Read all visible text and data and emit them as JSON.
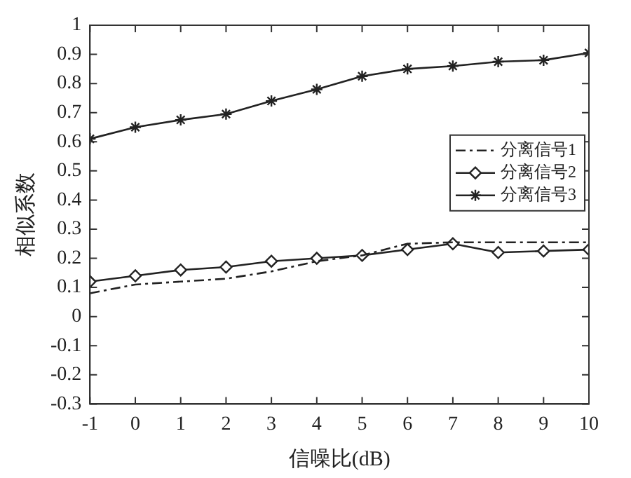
{
  "chart_data": {
    "type": "line",
    "xlabel": "信噪比(dB)",
    "ylabel": "相似系数",
    "x": [
      -1,
      0,
      1,
      2,
      3,
      4,
      5,
      6,
      7,
      8,
      9,
      10
    ],
    "xlim": [
      -1,
      10
    ],
    "xticks": [
      -1,
      0,
      1,
      2,
      3,
      4,
      5,
      6,
      7,
      8,
      9,
      10
    ],
    "ylim": [
      -0.3,
      1
    ],
    "yticks": [
      -0.3,
      -0.2,
      -0.1,
      0,
      0.1,
      0.2,
      0.3,
      0.4,
      0.5,
      0.6,
      0.7,
      0.8,
      0.9,
      1
    ],
    "grid": false,
    "legend": "right",
    "series": [
      {
        "name": "分离信号1",
        "color": "#222222",
        "marker": "none",
        "line_style": "dashed",
        "values": [
          0.08,
          0.11,
          0.12,
          0.13,
          0.155,
          0.19,
          0.21,
          0.25,
          0.255,
          0.255,
          0.255,
          0.255
        ]
      },
      {
        "name": "分离信号2",
        "color": "#222222",
        "marker": "diamond",
        "line_style": "solid",
        "values": [
          0.12,
          0.14,
          0.16,
          0.17,
          0.19,
          0.2,
          0.21,
          0.23,
          0.25,
          0.22,
          0.225,
          0.23
        ]
      },
      {
        "name": "分离信号3",
        "color": "#222222",
        "marker": "cross",
        "line_style": "solid",
        "values": [
          0.61,
          0.65,
          0.675,
          0.695,
          0.74,
          0.78,
          0.825,
          0.85,
          0.86,
          0.875,
          0.88,
          0.905
        ]
      }
    ]
  }
}
